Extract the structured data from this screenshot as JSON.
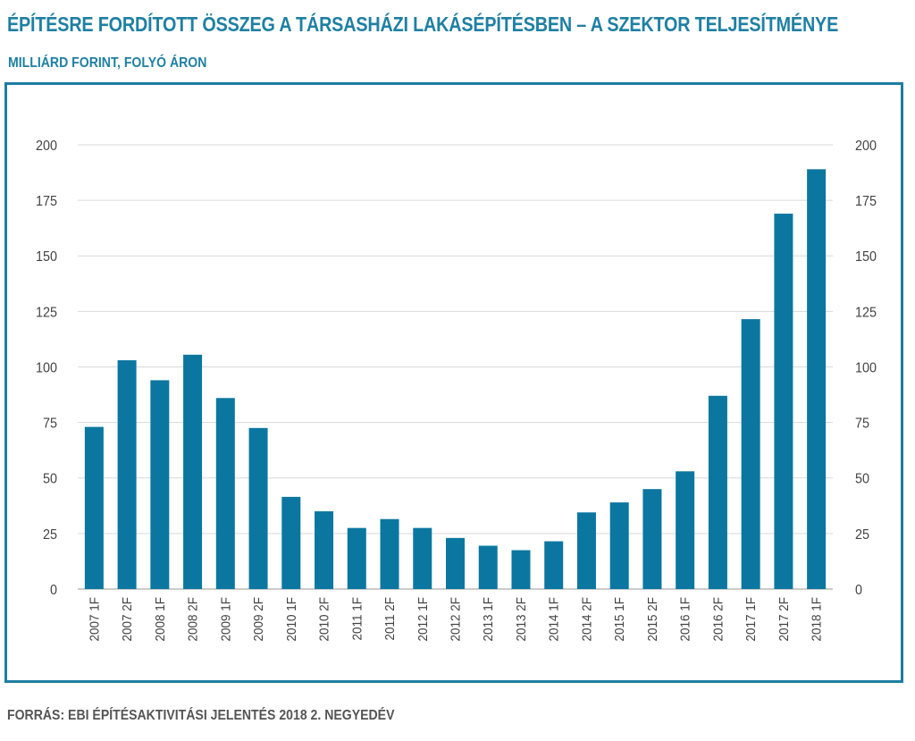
{
  "chart_data": {
    "type": "bar",
    "title": "ÉPÍTÉSRE FORDÍTOTT ÖSSZEG A TÁRSASHÁZI LAKÁSÉPÍTÉSBEN – A SZEKTOR TELJESÍTMÉNYE",
    "subtitle": "MILLIÁRD FORINT, FOLYÓ ÁRON",
    "source": "FORRÁS: EBI ÉPÍTÉSAKTIVITÁSI JELENTÉS 2018 2. NEGYEDÉV",
    "xlabel": "",
    "ylabel": "",
    "ylim": [
      0,
      200
    ],
    "yticks": [
      "0",
      "25",
      "50",
      "75",
      "100",
      "125",
      "150",
      "175",
      "200"
    ],
    "grid": true,
    "color": "#0b77a0",
    "categories": [
      "2007 1F",
      "2007 2F",
      "2008 1F",
      "2008 2F",
      "2009 1F",
      "2009 2F",
      "2010 1F",
      "2010 2F",
      "2011 1F",
      "2011 2F",
      "2012 1F",
      "2012 2F",
      "2013 1F",
      "2013 2F",
      "2014 1F",
      "2014 2F",
      "2015 1F",
      "2015 2F",
      "2016 1F",
      "2016 2F",
      "2017 1F",
      "2017 2F",
      "2018 1F"
    ],
    "values": [
      73,
      103,
      94,
      105.5,
      86,
      72.5,
      41.5,
      35,
      27.5,
      31.5,
      27.5,
      23,
      19.5,
      17.5,
      21.5,
      34.5,
      39,
      45,
      53,
      87,
      121.5,
      169,
      189
    ]
  }
}
